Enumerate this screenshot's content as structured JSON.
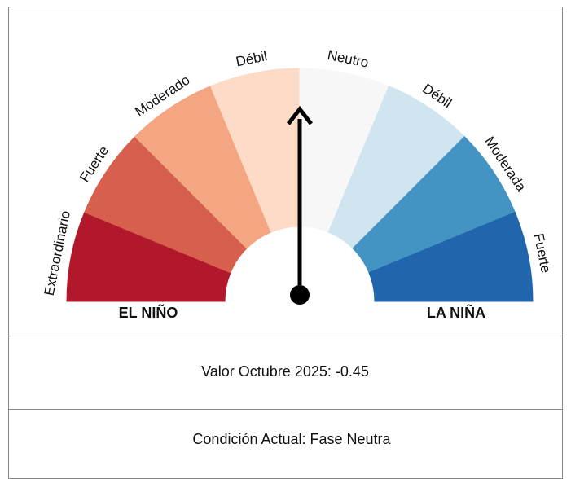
{
  "gauge": {
    "segments": [
      {
        "label": "Extraordinario",
        "color": "#b2182b"
      },
      {
        "label": "Fuerte",
        "color": "#d6604d"
      },
      {
        "label": "Moderado",
        "color": "#f4a582"
      },
      {
        "label": "Débil",
        "color": "#fddbc7"
      },
      {
        "label": "Neutro",
        "color": "#f7f7f7"
      },
      {
        "label": "Débil",
        "color": "#d1e5f0"
      },
      {
        "label": "Moderada",
        "color": "#4393c3"
      },
      {
        "label": "Fuerte",
        "color": "#2166ac"
      }
    ],
    "left_label": "EL NIÑO",
    "right_label": "LA NIÑA"
  },
  "rows": [
    "Valor Octubre 2025: -0.45",
    "Condición Actual: Fase Neutra"
  ]
}
